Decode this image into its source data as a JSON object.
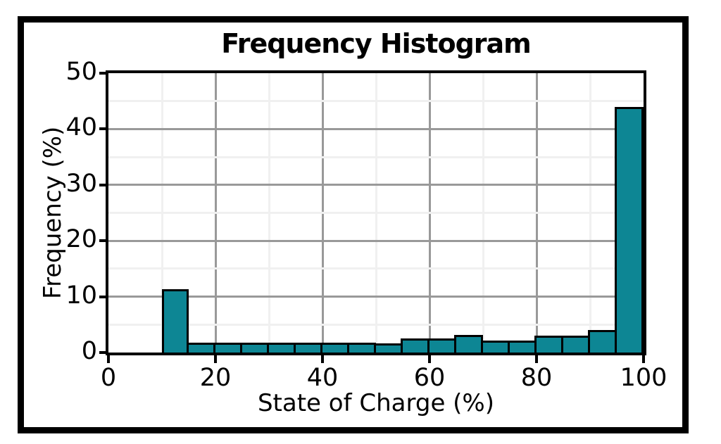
{
  "chart_data": {
    "type": "bar",
    "title": "Frequency Histogram",
    "xlabel": "State of Charge (%)",
    "ylabel": "Frequency (%)",
    "xlim": [
      0,
      100
    ],
    "ylim": [
      0,
      50
    ],
    "x_ticks": [
      0,
      20,
      40,
      60,
      80,
      100
    ],
    "y_ticks": [
      0,
      10,
      20,
      30,
      40,
      50
    ],
    "grid": {
      "major_every": 10,
      "minor_every": 5,
      "major_color": "#999999",
      "minor_color": "#f0f0f0"
    },
    "legend": "none",
    "bin_width": 5,
    "bins": [
      {
        "range": [
          10,
          15
        ],
        "value": 11.3
      },
      {
        "range": [
          15,
          20
        ],
        "value": 1.8
      },
      {
        "range": [
          20,
          25
        ],
        "value": 1.8
      },
      {
        "range": [
          25,
          30
        ],
        "value": 1.8
      },
      {
        "range": [
          30,
          35
        ],
        "value": 1.8
      },
      {
        "range": [
          35,
          40
        ],
        "value": 1.8
      },
      {
        "range": [
          40,
          45
        ],
        "value": 1.8
      },
      {
        "range": [
          45,
          50
        ],
        "value": 1.8
      },
      {
        "range": [
          50,
          55
        ],
        "value": 1.7
      },
      {
        "range": [
          55,
          60
        ],
        "value": 2.5
      },
      {
        "range": [
          60,
          65
        ],
        "value": 2.5
      },
      {
        "range": [
          65,
          70
        ],
        "value": 3.2
      },
      {
        "range": [
          70,
          75
        ],
        "value": 2.2
      },
      {
        "range": [
          75,
          80
        ],
        "value": 2.2
      },
      {
        "range": [
          80,
          85
        ],
        "value": 3.0
      },
      {
        "range": [
          85,
          90
        ],
        "value": 3.0
      },
      {
        "range": [
          90,
          95
        ],
        "value": 4.0
      },
      {
        "range": [
          95,
          100
        ],
        "value": 44.0
      }
    ],
    "colors": {
      "bar_fill": "#0d8694",
      "bar_border": "#000000",
      "frame": "#000000",
      "background": "#ffffff"
    }
  }
}
